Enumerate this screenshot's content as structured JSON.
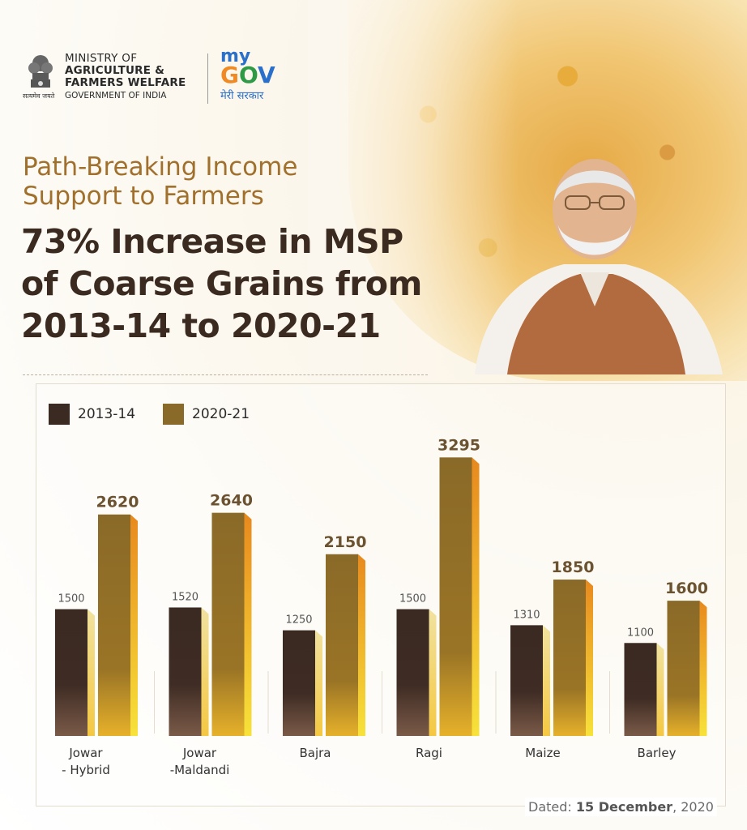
{
  "header": {
    "ministry_line1": "MINISTRY OF",
    "ministry_line2": "AGRICULTURE &",
    "ministry_line3": "FARMERS WELFARE",
    "ministry_line4": "GOVERNMENT OF INDIA",
    "emblem_caption": "सत्यमेव जयते",
    "mygov_my": "my",
    "mygov_gov_g": "G",
    "mygov_gov_o": "O",
    "mygov_gov_v": "V",
    "mygov_hindi": "मेरी सरकार"
  },
  "subtitle_line1": "Path-Breaking Income",
  "subtitle_line2": "Support to Farmers",
  "headline_line1": "73% Increase in MSP",
  "headline_line2": "of Coarse Grains from",
  "headline_line3": "2013-14 to 2020-21",
  "dated_label": "Dated:",
  "dated_value": "15 December",
  "dated_year": ", 2020",
  "colors": {
    "series_2013": "#3a2a22",
    "series_2020": "#8a6a28",
    "side_2013": "#f5c842",
    "side_2020": "#e8891e",
    "subtitle": "#a0702c",
    "headline": "#3a2a20"
  },
  "chart_data": {
    "type": "bar",
    "categories": [
      "Jowar\n- Hybrid",
      "Jowar\n-Maldandi",
      "Bajra",
      "Ragi",
      "Maize",
      "Barley"
    ],
    "series": [
      {
        "name": "2013-14",
        "values": [
          1500,
          1520,
          1250,
          1500,
          1310,
          1100
        ]
      },
      {
        "name": "2020-21",
        "values": [
          2620,
          2640,
          2150,
          3295,
          1850,
          1600
        ]
      }
    ],
    "legend_position": "top-left",
    "grid": false
  }
}
